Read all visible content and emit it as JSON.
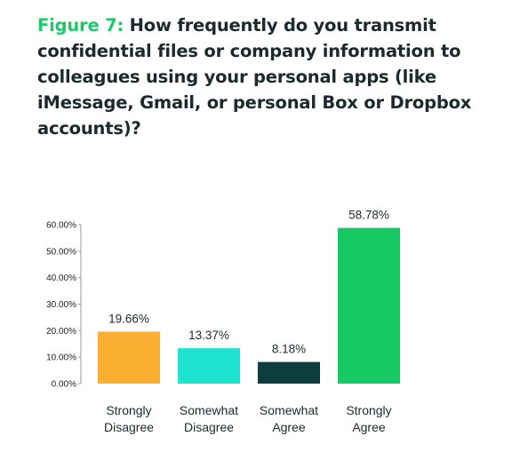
{
  "figure_label": "Figure 7:",
  "chart_data": {
    "type": "bar",
    "title": "How frequently do you transmit confidential files or company information to colleagues using your personal apps (like iMessage, Gmail, or personal Box or Dropbox accounts)?",
    "categories": [
      [
        "Strongly",
        "Disagree"
      ],
      [
        "Somewhat",
        "Disagree"
      ],
      [
        "Somewhat",
        "Agree"
      ],
      [
        "Strongly",
        "Agree"
      ]
    ],
    "values": [
      19.66,
      13.37,
      8.18,
      58.78
    ],
    "data_labels": [
      "19.66%",
      "13.37%",
      "8.18%",
      "58.78%"
    ],
    "colors": [
      "#fbb033",
      "#1ee3cf",
      "#0d3d3d",
      "#17c964"
    ],
    "yticks": [
      "0.00%",
      "10.00%",
      "20.00%",
      "30.00%",
      "40.00%",
      "50.00%",
      "60.00%"
    ],
    "ylim": [
      0,
      60
    ],
    "xlabel": "",
    "ylabel": "",
    "grid": false,
    "legend": "none"
  }
}
